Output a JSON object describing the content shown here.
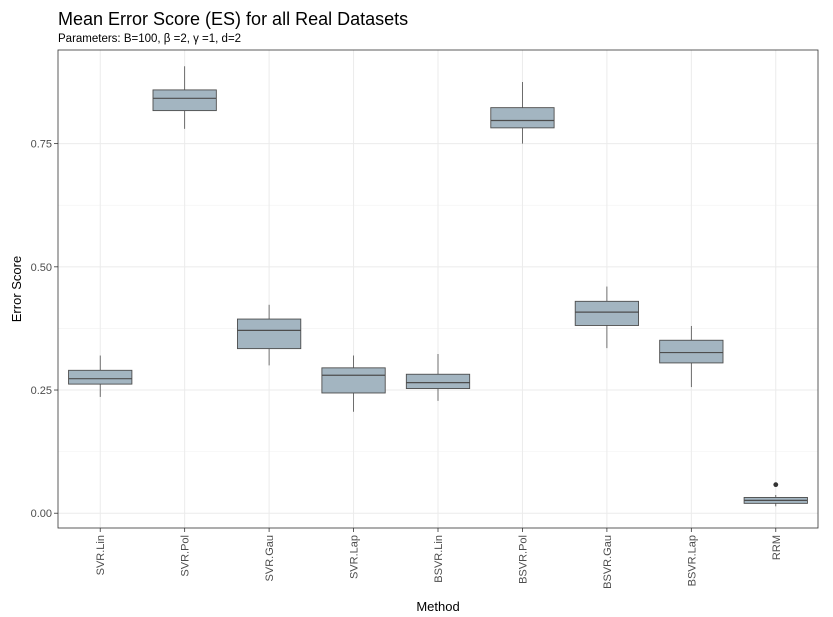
{
  "chart_data": {
    "type": "boxplot",
    "title": "Mean Error Score (ES) for all Real Datasets",
    "subtitle": "Parameters: B=100, β =2, γ =1, d=2",
    "xlabel": "Method",
    "ylabel": "Error Score",
    "ylim": [
      -0.03,
      0.94
    ],
    "yticks": [
      0.0,
      0.25,
      0.5,
      0.75
    ],
    "ytick_labels": [
      "0.00",
      "0.25",
      "0.50",
      "0.75"
    ],
    "grid": true,
    "box_fill": "#a3b5c1",
    "box_stroke": "#4d4d4d",
    "categories": [
      "SVR.Lin",
      "SVR.Pol",
      "SVR.Gau",
      "SVR.Lap",
      "BSVR.Lin",
      "BSVR.Pol",
      "BSVR.Gau",
      "BSVR.Lap",
      "RRM"
    ],
    "boxes": [
      {
        "min": 0.236,
        "q1": 0.262,
        "median": 0.273,
        "q3": 0.29,
        "max": 0.32,
        "outliers": []
      },
      {
        "min": 0.78,
        "q1": 0.817,
        "median": 0.842,
        "q3": 0.859,
        "max": 0.907,
        "outliers": []
      },
      {
        "min": 0.3,
        "q1": 0.334,
        "median": 0.371,
        "q3": 0.394,
        "max": 0.423,
        "outliers": []
      },
      {
        "min": 0.206,
        "q1": 0.244,
        "median": 0.28,
        "q3": 0.295,
        "max": 0.32,
        "outliers": []
      },
      {
        "min": 0.228,
        "q1": 0.253,
        "median": 0.265,
        "q3": 0.282,
        "max": 0.323,
        "outliers": []
      },
      {
        "min": 0.75,
        "q1": 0.782,
        "median": 0.797,
        "q3": 0.823,
        "max": 0.875,
        "outliers": []
      },
      {
        "min": 0.335,
        "q1": 0.381,
        "median": 0.408,
        "q3": 0.43,
        "max": 0.46,
        "outliers": []
      },
      {
        "min": 0.256,
        "q1": 0.305,
        "median": 0.326,
        "q3": 0.351,
        "max": 0.38,
        "outliers": []
      },
      {
        "min": 0.014,
        "q1": 0.02,
        "median": 0.026,
        "q3": 0.032,
        "max": 0.037,
        "outliers": [
          0.058
        ]
      }
    ]
  }
}
